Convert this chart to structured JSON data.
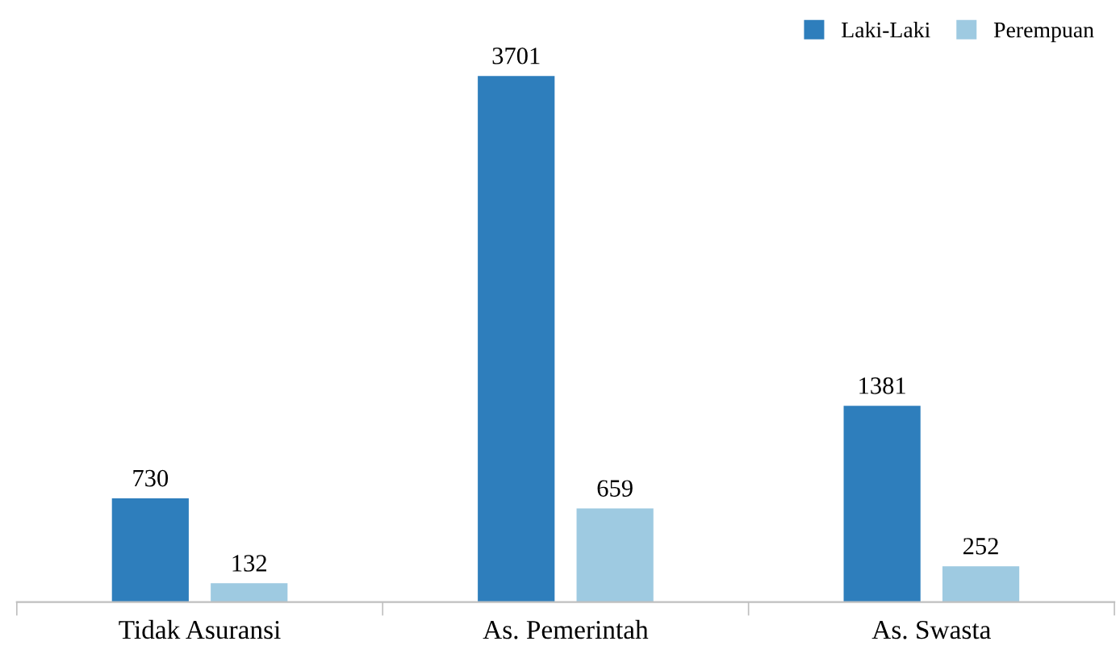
{
  "chart_data": {
    "type": "bar",
    "categories": [
      "Tidak Asuransi",
      "As. Pemerintah",
      "As. Swasta"
    ],
    "series": [
      {
        "name": "Laki-Laki",
        "color": "#2e7ebc",
        "values": [
          730,
          3701,
          1381
        ]
      },
      {
        "name": "Perempuan",
        "color": "#9ecae1",
        "values": [
          132,
          659,
          252
        ]
      }
    ],
    "data_labels": true,
    "legend": "top right",
    "tick_labels": "x"
  }
}
